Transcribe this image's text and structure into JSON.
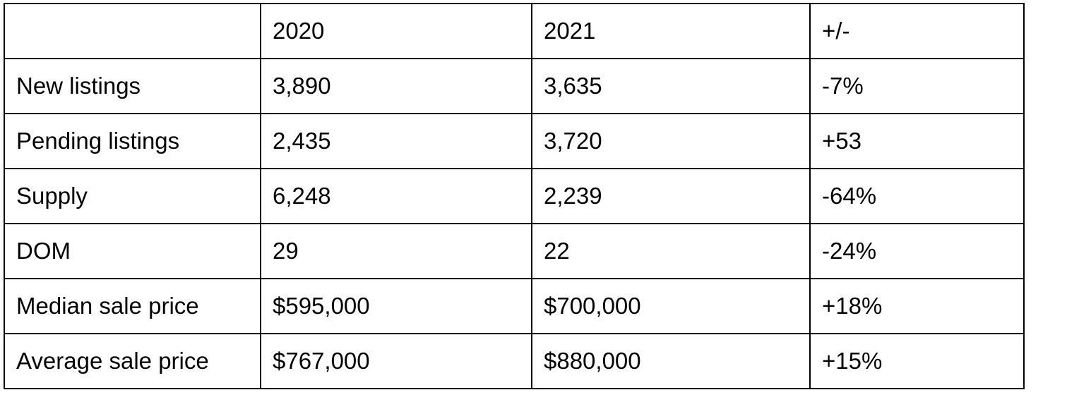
{
  "table": {
    "headers": [
      "",
      "2020",
      "2021",
      "+/-"
    ],
    "rows": [
      [
        "New listings",
        "3,890",
        "3,635",
        "-7%"
      ],
      [
        "Pending listings",
        "2,435",
        "3,720",
        "+53"
      ],
      [
        "Supply",
        "6,248",
        "2,239",
        "-64%"
      ],
      [
        "DOM",
        "29",
        "22",
        "-24%"
      ],
      [
        "Median sale price",
        "$595,000",
        "$700,000",
        "+18%"
      ],
      [
        "Average sale price",
        "$767,000",
        "$880,000",
        "+15%"
      ]
    ]
  }
}
